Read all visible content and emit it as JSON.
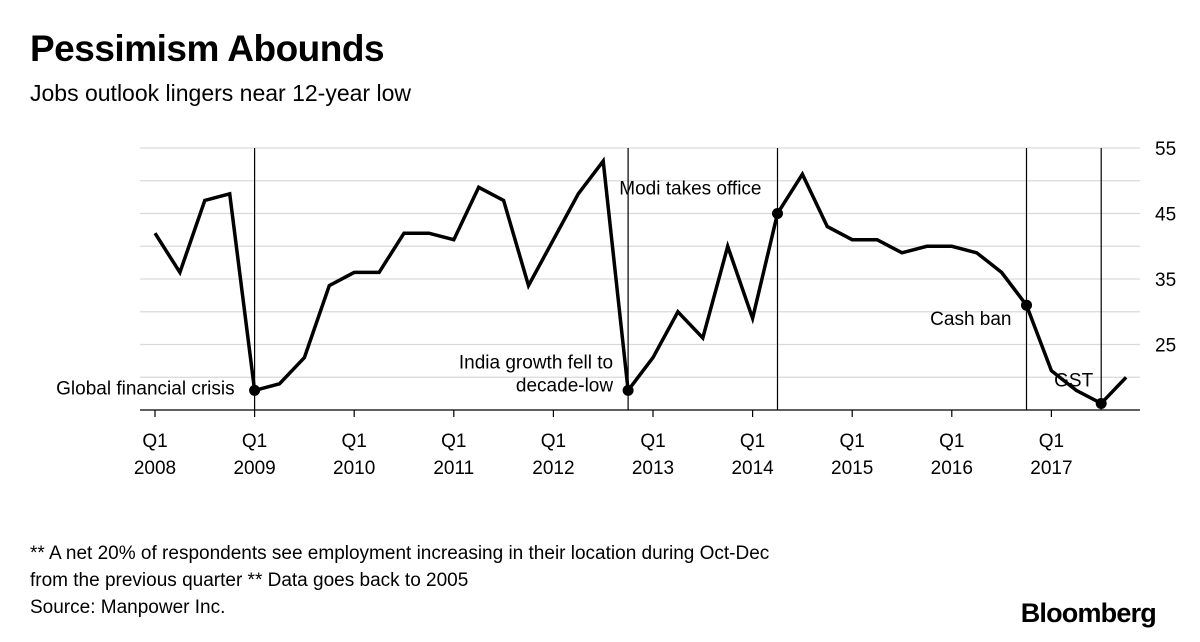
{
  "header": {
    "title": "Pessimism Abounds",
    "subtitle": "Jobs outlook lingers near 12-year low"
  },
  "footer": {
    "note_line1": "** A net 20% of respondents see employment increasing in their location during Oct-Dec",
    "note_line2": "from the previous quarter ** Data goes back to 2005",
    "source": "Source: Manpower Inc.",
    "brand": "Bloomberg"
  },
  "chart_data": {
    "type": "line",
    "xlabel": "",
    "ylabel": "",
    "ylim": [
      15,
      55
    ],
    "y_ticks": [
      25,
      35,
      45,
      55
    ],
    "y_axis_side": "right",
    "grid": "horizontal",
    "x_ticks": [
      {
        "q": 0,
        "quarter": "Q1",
        "year": "2008"
      },
      {
        "q": 4,
        "quarter": "Q1",
        "year": "2009"
      },
      {
        "q": 8,
        "quarter": "Q1",
        "year": "2010"
      },
      {
        "q": 12,
        "quarter": "Q1",
        "year": "2011"
      },
      {
        "q": 16,
        "quarter": "Q1",
        "year": "2012"
      },
      {
        "q": 20,
        "quarter": "Q1",
        "year": "2013"
      },
      {
        "q": 24,
        "quarter": "Q1",
        "year": "2014"
      },
      {
        "q": 28,
        "quarter": "Q1",
        "year": "2015"
      },
      {
        "q": 32,
        "quarter": "Q1",
        "year": "2016"
      },
      {
        "q": 36,
        "quarter": "Q1",
        "year": "2017"
      }
    ],
    "series": [
      {
        "values": [
          42,
          36,
          47,
          48,
          18,
          19,
          23,
          34,
          36,
          36,
          42,
          42,
          41,
          49,
          47,
          34,
          41,
          48,
          53,
          18,
          23,
          30,
          26,
          40,
          29,
          45,
          51,
          43,
          41,
          41,
          39,
          40,
          40,
          39,
          36,
          31,
          21,
          18,
          16,
          20
        ]
      }
    ],
    "annotations": [
      {
        "q": 4,
        "value": 18,
        "lines": [
          "Global financial crisis"
        ],
        "align": "end",
        "dx": -20,
        "dy": 4
      },
      {
        "q": 19,
        "value": 18,
        "lines": [
          "India growth fell to",
          "decade-low"
        ],
        "align": "end",
        "dx": -15,
        "dy": -22
      },
      {
        "q": 25,
        "value": 45,
        "lines": [
          "Modi takes office"
        ],
        "align": "end",
        "dx": -16,
        "dy": -19
      },
      {
        "q": 35,
        "value": 31,
        "lines": [
          "Cash ban"
        ],
        "align": "end",
        "dx": -15,
        "dy": 20
      },
      {
        "q": 38,
        "value": 16,
        "lines": [
          "GST"
        ],
        "align": "end",
        "dx": -8,
        "dy": -17
      }
    ]
  }
}
